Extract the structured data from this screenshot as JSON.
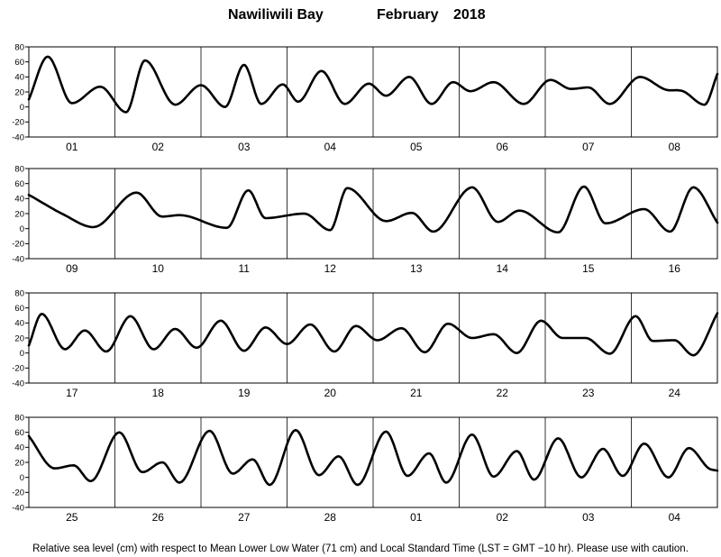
{
  "header": {
    "station": "Nawiliwili Bay",
    "month": "February",
    "year": "2018"
  },
  "footer": {
    "note": "Relative sea level (cm) with respect to Mean Lower Low Water (71 cm) and Local Standard Time (LST = GMT −10 hr). Please use with caution."
  },
  "chart_data": {
    "type": "line",
    "title": "",
    "xlabel": "",
    "ylabel": "",
    "ylim": [
      -40,
      80
    ],
    "y_ticks": [
      -40,
      -20,
      0,
      20,
      40,
      60,
      80
    ],
    "grid": "vertical lines at day boundaries",
    "line_color": "#000000",
    "panels": [
      {
        "days": [
          "01",
          "02",
          "03",
          "04",
          "05",
          "06",
          "07",
          "08"
        ],
        "x": [
          0,
          0.22,
          0.5,
          0.83,
          1.13,
          1.35,
          1.7,
          2.0,
          2.28,
          2.5,
          2.7,
          2.95,
          3.13,
          3.4,
          3.67,
          3.95,
          4.15,
          4.42,
          4.68,
          4.93,
          5.13,
          5.4,
          5.75,
          6.06,
          6.3,
          6.5,
          6.75,
          7.1,
          7.4,
          7.6,
          7.85,
          8.0
        ],
        "values": [
          10,
          67,
          5,
          27,
          -7,
          62,
          3,
          29,
          0,
          56,
          4,
          30,
          7,
          48,
          4,
          31,
          15,
          40,
          4,
          33,
          21,
          33,
          4,
          36,
          24,
          26,
          4,
          40,
          23,
          21,
          3,
          44
        ]
      },
      {
        "days": [
          "09",
          "10",
          "11",
          "12",
          "13",
          "14",
          "15",
          "16"
        ],
        "x": [
          0,
          0.4,
          0.75,
          1.25,
          1.55,
          1.75,
          2.3,
          2.55,
          2.75,
          3.2,
          3.5,
          3.7,
          4.15,
          4.45,
          4.7,
          5.15,
          5.45,
          5.7,
          6.15,
          6.45,
          6.7,
          7.15,
          7.45,
          7.72,
          8.0
        ],
        "values": [
          45,
          19,
          2,
          48,
          16,
          18,
          1,
          51,
          14,
          20,
          -2,
          54,
          10,
          21,
          -4,
          55,
          9,
          24,
          -5,
          56,
          7,
          26,
          -4,
          55,
          8
        ]
      },
      {
        "days": [
          "17",
          "18",
          "19",
          "20",
          "21",
          "22",
          "23",
          "24"
        ],
        "x": [
          0,
          0.15,
          0.42,
          0.65,
          0.9,
          1.18,
          1.45,
          1.7,
          1.95,
          2.23,
          2.5,
          2.75,
          3.0,
          3.27,
          3.55,
          3.8,
          4.05,
          4.33,
          4.6,
          4.87,
          5.15,
          5.4,
          5.67,
          5.95,
          6.2,
          6.47,
          6.75,
          7.05,
          7.25,
          7.5,
          7.72,
          8.0
        ],
        "values": [
          10,
          52,
          5,
          30,
          2,
          49,
          5,
          32,
          7,
          43,
          3,
          34,
          12,
          38,
          2,
          36,
          17,
          33,
          1,
          39,
          20,
          25,
          0,
          43,
          20,
          20,
          -1,
          49,
          16,
          17,
          -3,
          53
        ]
      },
      {
        "days": [
          "25",
          "26",
          "27",
          "28",
          "01",
          "02",
          "03",
          "04"
        ],
        "x": [
          0,
          0.3,
          0.52,
          0.72,
          1.05,
          1.32,
          1.55,
          1.75,
          2.1,
          2.37,
          2.6,
          2.8,
          3.1,
          3.37,
          3.6,
          3.82,
          4.15,
          4.4,
          4.65,
          4.85,
          5.15,
          5.4,
          5.67,
          5.87,
          6.15,
          6.42,
          6.67,
          6.9,
          7.15,
          7.43,
          7.67,
          7.9,
          8.0
        ],
        "values": [
          55,
          12,
          16,
          -5,
          60,
          7,
          20,
          -7,
          62,
          5,
          24,
          -10,
          63,
          3,
          28,
          -10,
          61,
          2,
          32,
          -7,
          57,
          1,
          35,
          -3,
          52,
          0,
          38,
          2,
          45,
          0,
          39,
          12,
          9
        ]
      }
    ]
  }
}
